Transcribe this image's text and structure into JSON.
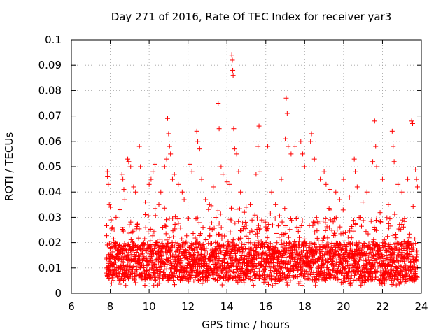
{
  "chart_data": {
    "type": "scatter",
    "title": "Day 271 of 2016, Rate Of TEC Index for receiver yar3",
    "xlabel": "GPS time / hours",
    "ylabel": "ROTI / TECUs",
    "xlim": [
      6,
      24
    ],
    "ylim": [
      0,
      0.1
    ],
    "x_ticks": [
      "6",
      "8",
      "10",
      "12",
      "14",
      "16",
      "18",
      "20",
      "22",
      "24"
    ],
    "y_ticks": [
      "0",
      "0.01",
      "0.02",
      "0.03",
      "0.04",
      "0.05",
      "0.06",
      "0.07",
      "0.08",
      "0.09",
      "0.1"
    ],
    "grid": true,
    "marker": "plus",
    "color": "#ff0000",
    "series": [
      {
        "name": "ROTI",
        "points": [
          [
            7.85,
            0.048
          ],
          [
            7.86,
            0.046
          ],
          [
            7.9,
            0.043
          ],
          [
            7.95,
            0.035
          ],
          [
            8.0,
            0.034
          ],
          [
            8.05,
            0.029
          ],
          [
            8.1,
            0.026
          ],
          [
            8.2,
            0.025
          ],
          [
            8.3,
            0.03
          ],
          [
            8.5,
            0.033
          ],
          [
            8.6,
            0.047
          ],
          [
            8.65,
            0.045
          ],
          [
            8.7,
            0.041
          ],
          [
            8.75,
            0.037
          ],
          [
            8.9,
            0.053
          ],
          [
            8.95,
            0.052
          ],
          [
            9.05,
            0.05
          ],
          [
            9.2,
            0.042
          ],
          [
            9.3,
            0.04
          ],
          [
            9.5,
            0.058
          ],
          [
            9.55,
            0.05
          ],
          [
            9.8,
            0.036
          ],
          [
            10.0,
            0.043
          ],
          [
            10.1,
            0.045
          ],
          [
            10.2,
            0.048
          ],
          [
            10.3,
            0.051
          ],
          [
            10.5,
            0.035
          ],
          [
            10.6,
            0.04
          ],
          [
            10.8,
            0.05
          ],
          [
            10.9,
            0.053
          ],
          [
            10.95,
            0.069
          ],
          [
            11.0,
            0.063
          ],
          [
            11.05,
            0.058
          ],
          [
            11.1,
            0.055
          ],
          [
            11.2,
            0.045
          ],
          [
            11.3,
            0.047
          ],
          [
            11.5,
            0.043
          ],
          [
            11.7,
            0.04
          ],
          [
            11.8,
            0.037
          ],
          [
            12.1,
            0.051
          ],
          [
            12.2,
            0.048
          ],
          [
            12.45,
            0.064
          ],
          [
            12.5,
            0.06
          ],
          [
            12.6,
            0.057
          ],
          [
            12.7,
            0.045
          ],
          [
            12.9,
            0.037
          ],
          [
            13.1,
            0.035
          ],
          [
            13.3,
            0.042
          ],
          [
            13.55,
            0.075
          ],
          [
            13.6,
            0.065
          ],
          [
            13.7,
            0.05
          ],
          [
            13.8,
            0.047
          ],
          [
            14.0,
            0.044
          ],
          [
            14.15,
            0.043
          ],
          [
            14.25,
            0.094
          ],
          [
            14.28,
            0.092
          ],
          [
            14.3,
            0.088
          ],
          [
            14.32,
            0.086
          ],
          [
            14.35,
            0.065
          ],
          [
            14.4,
            0.057
          ],
          [
            14.5,
            0.055
          ],
          [
            14.6,
            0.048
          ],
          [
            14.7,
            0.04
          ],
          [
            14.9,
            0.032
          ],
          [
            15.2,
            0.035
          ],
          [
            15.5,
            0.047
          ],
          [
            15.6,
            0.058
          ],
          [
            15.65,
            0.066
          ],
          [
            15.7,
            0.048
          ],
          [
            16.1,
            0.058
          ],
          [
            16.3,
            0.04
          ],
          [
            16.5,
            0.035
          ],
          [
            16.8,
            0.045
          ],
          [
            17.0,
            0.061
          ],
          [
            17.05,
            0.077
          ],
          [
            17.1,
            0.071
          ],
          [
            17.15,
            0.058
          ],
          [
            17.3,
            0.055
          ],
          [
            17.5,
            0.058
          ],
          [
            17.8,
            0.06
          ],
          [
            17.9,
            0.055
          ],
          [
            18.0,
            0.05
          ],
          [
            18.3,
            0.06
          ],
          [
            18.35,
            0.063
          ],
          [
            18.5,
            0.053
          ],
          [
            18.8,
            0.045
          ],
          [
            19.0,
            0.048
          ],
          [
            19.1,
            0.043
          ],
          [
            19.3,
            0.041
          ],
          [
            19.6,
            0.04
          ],
          [
            19.8,
            0.037
          ],
          [
            20.0,
            0.045
          ],
          [
            20.3,
            0.038
          ],
          [
            20.55,
            0.053
          ],
          [
            20.6,
            0.048
          ],
          [
            20.7,
            0.042
          ],
          [
            21.0,
            0.036
          ],
          [
            21.2,
            0.04
          ],
          [
            21.5,
            0.052
          ],
          [
            21.6,
            0.068
          ],
          [
            21.65,
            0.058
          ],
          [
            21.7,
            0.05
          ],
          [
            22.0,
            0.045
          ],
          [
            22.3,
            0.035
          ],
          [
            22.5,
            0.064
          ],
          [
            22.55,
            0.058
          ],
          [
            22.6,
            0.052
          ],
          [
            22.8,
            0.043
          ],
          [
            23.0,
            0.04
          ],
          [
            23.3,
            0.045
          ],
          [
            23.5,
            0.068
          ],
          [
            23.55,
            0.067
          ],
          [
            23.7,
            0.049
          ],
          [
            23.75,
            0.045
          ],
          [
            23.8,
            0.042
          ]
        ],
        "dense_band": {
          "x_range": [
            7.8,
            23.8
          ],
          "y_range": [
            0.003,
            0.035
          ],
          "typical": [
            0.005,
            0.02
          ]
        }
      }
    ]
  }
}
